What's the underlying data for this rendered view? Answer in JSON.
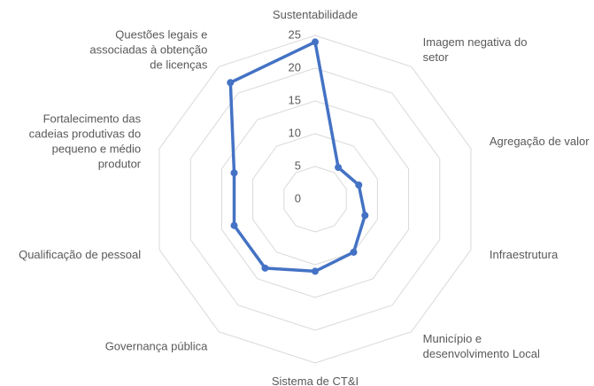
{
  "chart_data": {
    "type": "radar",
    "categories": [
      "Sustentabilidade",
      "Imagem negativa do\nsetor",
      "Agregação de valor",
      "Infraestrutura",
      "Município e\ndesenvolvimento Local",
      "Sistema de CT&I",
      "Governança pública",
      "Qualificação de pessoal",
      "Fortalecimento das\ncadeias produtivas do\npequeno e médio\nprodutor",
      "Questões legais e\nassociadas à obtenção\nde licenças"
    ],
    "values": [
      24,
      6,
      7,
      8,
      10,
      11,
      13,
      13,
      13,
      22
    ],
    "color": "#4472c4",
    "ylim": [
      0,
      25
    ],
    "yticks": [
      0,
      5,
      10,
      15,
      20,
      25
    ],
    "grid": true
  }
}
